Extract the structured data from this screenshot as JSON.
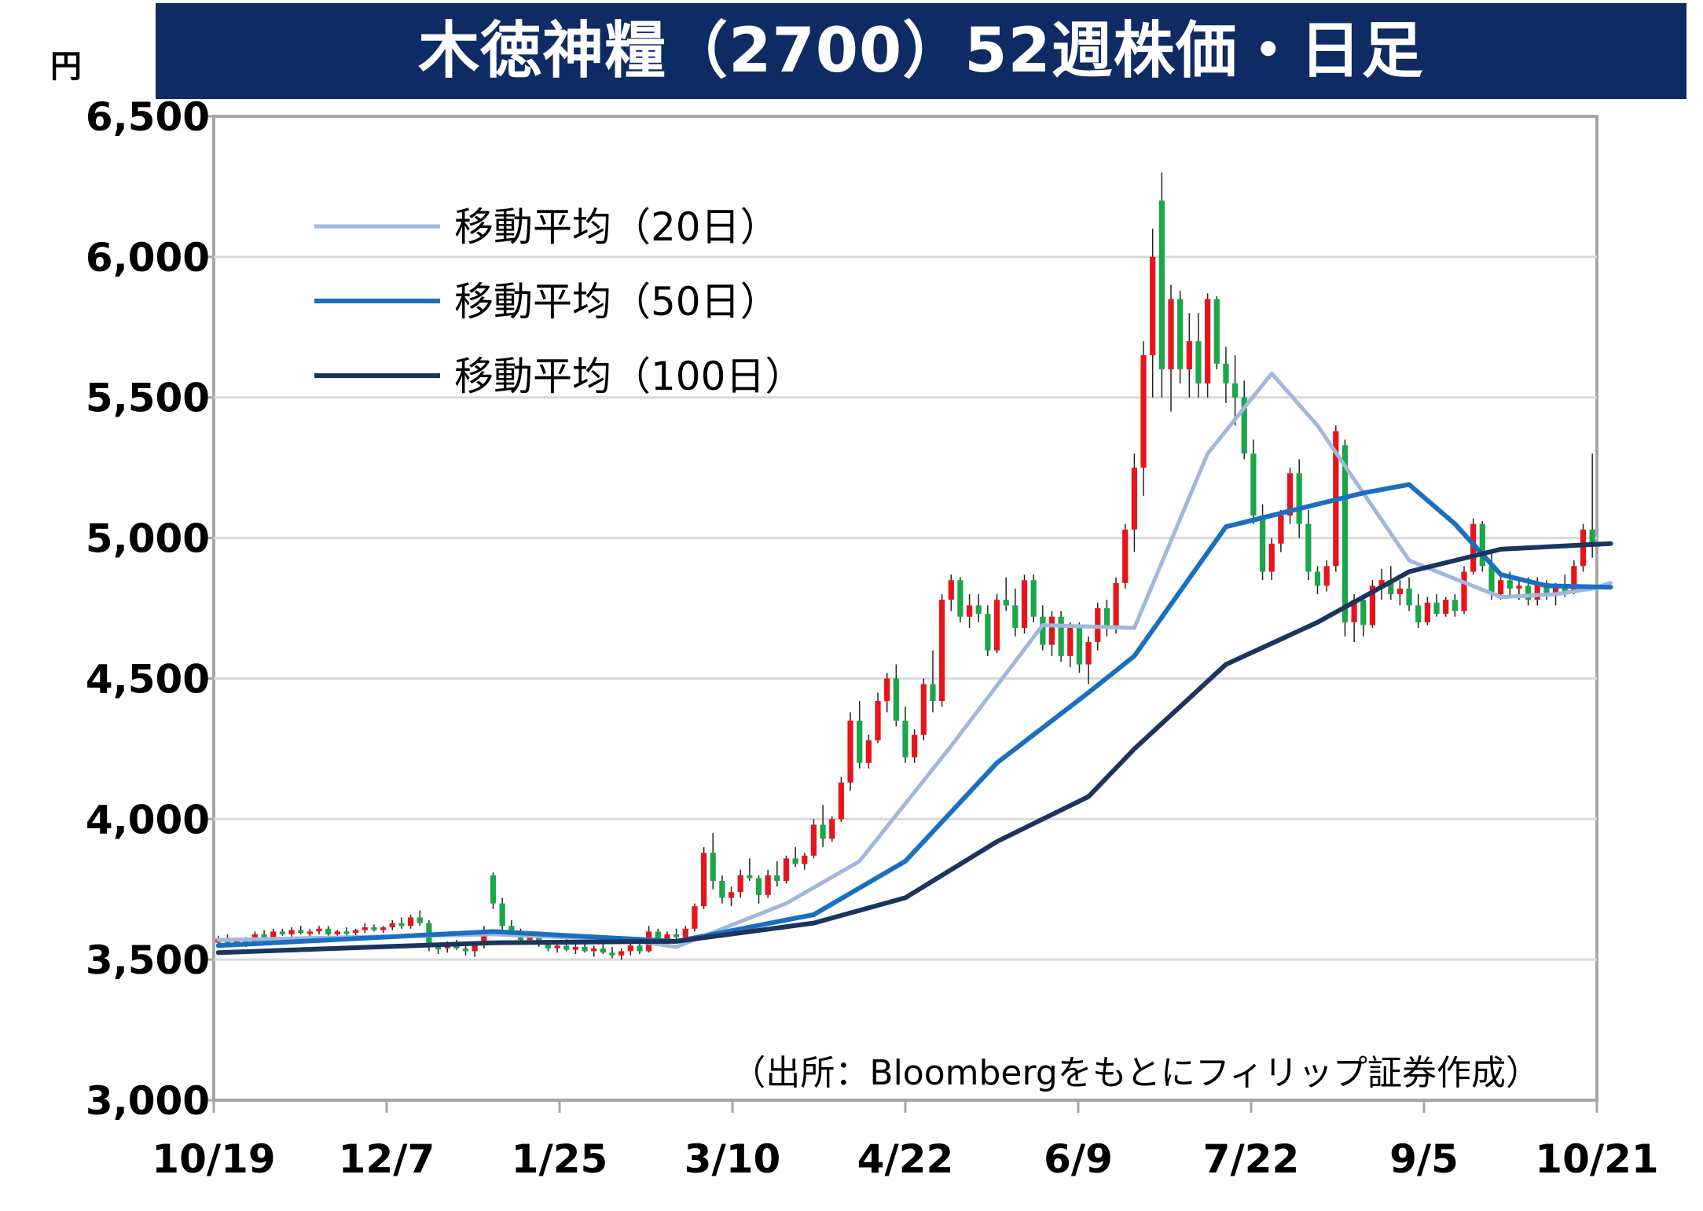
{
  "header": {
    "unit": "円"
  },
  "chart_data": {
    "type": "candlestick",
    "title": "木徳神糧（2700）52週株価・日足",
    "ylabel": "円",
    "ylim": [
      3000,
      6500
    ],
    "yticks": [
      "3,000",
      "3,500",
      "4,000",
      "4,500",
      "5,000",
      "5,500",
      "6,000",
      "6,500"
    ],
    "xticks": [
      "10/19",
      "12/7",
      "1/25",
      "3/10",
      "4/22",
      "6/9",
      "7/22",
      "9/5",
      "10/21"
    ],
    "grid": true,
    "legend_position": "top-left",
    "up_color": "#e8141b",
    "down_color": "#1aa64a",
    "source": "（出所：Bloombergをもとにフィリップ証券作成）",
    "candles": [
      [
        3560,
        3585,
        3545,
        3575
      ],
      [
        3575,
        3590,
        3555,
        3560
      ],
      [
        3560,
        3575,
        3550,
        3565
      ],
      [
        3565,
        3580,
        3545,
        3555
      ],
      [
        3555,
        3600,
        3550,
        3590
      ],
      [
        3590,
        3605,
        3570,
        3580
      ],
      [
        3580,
        3610,
        3570,
        3600
      ],
      [
        3600,
        3610,
        3585,
        3590
      ],
      [
        3590,
        3615,
        3580,
        3605
      ],
      [
        3605,
        3620,
        3590,
        3595
      ],
      [
        3595,
        3610,
        3580,
        3600
      ],
      [
        3600,
        3620,
        3590,
        3610
      ],
      [
        3610,
        3620,
        3585,
        3590
      ],
      [
        3590,
        3605,
        3580,
        3600
      ],
      [
        3600,
        3615,
        3585,
        3595
      ],
      [
        3595,
        3610,
        3585,
        3605
      ],
      [
        3605,
        3630,
        3595,
        3615
      ],
      [
        3615,
        3625,
        3600,
        3605
      ],
      [
        3605,
        3620,
        3595,
        3615
      ],
      [
        3615,
        3640,
        3605,
        3630
      ],
      [
        3630,
        3650,
        3610,
        3620
      ],
      [
        3620,
        3660,
        3610,
        3650
      ],
      [
        3650,
        3675,
        3620,
        3630
      ],
      [
        3630,
        3640,
        3530,
        3545
      ],
      [
        3545,
        3560,
        3520,
        3540
      ],
      [
        3540,
        3565,
        3525,
        3550
      ],
      [
        3550,
        3570,
        3535,
        3540
      ],
      [
        3540,
        3555,
        3515,
        3530
      ],
      [
        3530,
        3560,
        3510,
        3555
      ],
      [
        3560,
        3620,
        3540,
        3600
      ],
      [
        3800,
        3810,
        3680,
        3700
      ],
      [
        3700,
        3720,
        3600,
        3620
      ],
      [
        3620,
        3640,
        3580,
        3600
      ],
      [
        3600,
        3610,
        3560,
        3570
      ],
      [
        3570,
        3600,
        3555,
        3590
      ],
      [
        3590,
        3600,
        3545,
        3555
      ],
      [
        3555,
        3570,
        3530,
        3540
      ],
      [
        3540,
        3560,
        3525,
        3550
      ],
      [
        3550,
        3575,
        3530,
        3535
      ],
      [
        3535,
        3555,
        3520,
        3545
      ],
      [
        3545,
        3560,
        3525,
        3530
      ],
      [
        3530,
        3550,
        3510,
        3540
      ],
      [
        3540,
        3560,
        3520,
        3525
      ],
      [
        3525,
        3545,
        3505,
        3515
      ],
      [
        3515,
        3540,
        3500,
        3530
      ],
      [
        3530,
        3560,
        3515,
        3550
      ],
      [
        3550,
        3560,
        3520,
        3530
      ],
      [
        3530,
        3620,
        3525,
        3600
      ],
      [
        3600,
        3610,
        3560,
        3570
      ],
      [
        3570,
        3600,
        3555,
        3590
      ],
      [
        3590,
        3610,
        3570,
        3580
      ],
      [
        3580,
        3620,
        3570,
        3610
      ],
      [
        3610,
        3700,
        3600,
        3690
      ],
      [
        3690,
        3900,
        3680,
        3880
      ],
      [
        3880,
        3950,
        3750,
        3780
      ],
      [
        3780,
        3800,
        3700,
        3720
      ],
      [
        3720,
        3760,
        3690,
        3740
      ],
      [
        3740,
        3820,
        3720,
        3800
      ],
      [
        3800,
        3860,
        3780,
        3790
      ],
      [
        3790,
        3800,
        3700,
        3730
      ],
      [
        3730,
        3820,
        3720,
        3800
      ],
      [
        3800,
        3850,
        3760,
        3780
      ],
      [
        3780,
        3870,
        3770,
        3860
      ],
      [
        3860,
        3900,
        3830,
        3840
      ],
      [
        3840,
        3880,
        3820,
        3870
      ],
      [
        3870,
        4000,
        3860,
        3980
      ],
      [
        3980,
        4050,
        3900,
        3930
      ],
      [
        3930,
        4010,
        3920,
        4000
      ],
      [
        4000,
        4150,
        3990,
        4130
      ],
      [
        4130,
        4380,
        4100,
        4350
      ],
      [
        4350,
        4420,
        4180,
        4200
      ],
      [
        4200,
        4300,
        4180,
        4280
      ],
      [
        4280,
        4450,
        4270,
        4420
      ],
      [
        4420,
        4520,
        4380,
        4500
      ],
      [
        4500,
        4550,
        4330,
        4350
      ],
      [
        4350,
        4400,
        4200,
        4220
      ],
      [
        4220,
        4320,
        4200,
        4300
      ],
      [
        4300,
        4500,
        4280,
        4480
      ],
      [
        4480,
        4600,
        4380,
        4420
      ],
      [
        4420,
        4800,
        4400,
        4780
      ],
      [
        4780,
        4870,
        4740,
        4850
      ],
      [
        4850,
        4860,
        4700,
        4720
      ],
      [
        4720,
        4800,
        4680,
        4760
      ],
      [
        4760,
        4800,
        4700,
        4730
      ],
      [
        4730,
        4760,
        4580,
        4600
      ],
      [
        4600,
        4800,
        4590,
        4780
      ],
      [
        4780,
        4860,
        4740,
        4760
      ],
      [
        4760,
        4820,
        4650,
        4680
      ],
      [
        4680,
        4870,
        4660,
        4850
      ],
      [
        4850,
        4870,
        4700,
        4720
      ],
      [
        4720,
        4760,
        4600,
        4620
      ],
      [
        4620,
        4740,
        4580,
        4720
      ],
      [
        4720,
        4740,
        4560,
        4580
      ],
      [
        4580,
        4700,
        4540,
        4680
      ],
      [
        4680,
        4700,
        4520,
        4550
      ],
      [
        4550,
        4650,
        4480,
        4630
      ],
      [
        4630,
        4770,
        4600,
        4750
      ],
      [
        4750,
        4780,
        4650,
        4680
      ],
      [
        4680,
        4860,
        4660,
        4840
      ],
      [
        4840,
        5050,
        4820,
        5030
      ],
      [
        5030,
        5300,
        4950,
        5250
      ],
      [
        5250,
        5700,
        5150,
        5650
      ],
      [
        5650,
        6100,
        5500,
        6000
      ],
      [
        6200,
        6300,
        5500,
        5600
      ],
      [
        5600,
        5900,
        5450,
        5850
      ],
      [
        5850,
        5880,
        5550,
        5600
      ],
      [
        5600,
        5800,
        5500,
        5700
      ],
      [
        5700,
        5800,
        5500,
        5550
      ],
      [
        5550,
        5870,
        5500,
        5850
      ],
      [
        5850,
        5860,
        5600,
        5620
      ],
      [
        5620,
        5680,
        5480,
        5550
      ],
      [
        5550,
        5650,
        5400,
        5500
      ],
      [
        5500,
        5560,
        5280,
        5300
      ],
      [
        5300,
        5350,
        5050,
        5080
      ],
      [
        5080,
        5120,
        4850,
        4880
      ],
      [
        4880,
        5000,
        4850,
        4980
      ],
      [
        4980,
        5100,
        4950,
        5080
      ],
      [
        5080,
        5250,
        5050,
        5230
      ],
      [
        5230,
        5280,
        5000,
        5050
      ],
      [
        5050,
        5100,
        4850,
        4880
      ],
      [
        4880,
        4900,
        4800,
        4830
      ],
      [
        4830,
        4920,
        4810,
        4900
      ],
      [
        4900,
        5400,
        4880,
        5380
      ],
      [
        5330,
        5350,
        4650,
        4700
      ],
      [
        4700,
        4800,
        4630,
        4780
      ],
      [
        4780,
        4790,
        4650,
        4690
      ],
      [
        4690,
        4850,
        4680,
        4830
      ],
      [
        4830,
        4890,
        4780,
        4850
      ],
      [
        4850,
        4900,
        4780,
        4800
      ],
      [
        4800,
        4850,
        4760,
        4820
      ],
      [
        4820,
        4860,
        4740,
        4760
      ],
      [
        4760,
        4800,
        4680,
        4700
      ],
      [
        4700,
        4790,
        4690,
        4770
      ],
      [
        4770,
        4800,
        4720,
        4730
      ],
      [
        4730,
        4790,
        4720,
        4780
      ],
      [
        4780,
        4800,
        4720,
        4740
      ],
      [
        4740,
        4900,
        4730,
        4880
      ],
      [
        4880,
        5070,
        4870,
        5050
      ],
      [
        5050,
        5060,
        4880,
        4900
      ],
      [
        4900,
        4950,
        4780,
        4800
      ],
      [
        4800,
        4870,
        4780,
        4850
      ],
      [
        4850,
        4880,
        4790,
        4820
      ],
      [
        4820,
        4850,
        4780,
        4830
      ],
      [
        4830,
        4860,
        4760,
        4780
      ],
      [
        4780,
        4860,
        4760,
        4840
      ],
      [
        4840,
        4850,
        4780,
        4800
      ],
      [
        4800,
        4840,
        4760,
        4830
      ],
      [
        4830,
        4870,
        4790,
        4810
      ],
      [
        4810,
        4920,
        4800,
        4900
      ],
      [
        4900,
        5050,
        4880,
        5030
      ],
      [
        5030,
        5300,
        4930,
        4980
      ]
    ],
    "series": [
      {
        "name": "移動平均（20日）",
        "color": "#9fb8dc",
        "width": 5,
        "x": [
          0,
          30,
          45,
          50,
          62,
          70,
          80,
          90,
          100,
          108,
          115,
          120,
          130,
          140,
          146,
          150,
          152
        ],
        "values": [
          3570,
          3590,
          3570,
          3545,
          3700,
          3850,
          4260,
          4690,
          4680,
          5300,
          5585,
          5400,
          4920,
          4790,
          4800,
          4820,
          4840
        ]
      },
      {
        "name": "移動平均（50日）",
        "color": "#1a6fc1",
        "width": 6,
        "x": [
          0,
          30,
          50,
          65,
          75,
          85,
          95,
          100,
          110,
          120,
          125,
          130,
          135,
          140,
          145,
          152
        ],
        "values": [
          3550,
          3600,
          3565,
          3660,
          3850,
          4200,
          4450,
          4580,
          5040,
          5120,
          5160,
          5190,
          5050,
          4870,
          4830,
          4825
        ]
      },
      {
        "name": "移動平均（100日）",
        "color": "#1c355e",
        "width": 6,
        "x": [
          0,
          30,
          50,
          65,
          75,
          85,
          95,
          100,
          110,
          120,
          130,
          140,
          152
        ],
        "values": [
          3525,
          3560,
          3565,
          3630,
          3720,
          3920,
          4080,
          4250,
          4550,
          4700,
          4880,
          4960,
          4980
        ]
      }
    ]
  }
}
